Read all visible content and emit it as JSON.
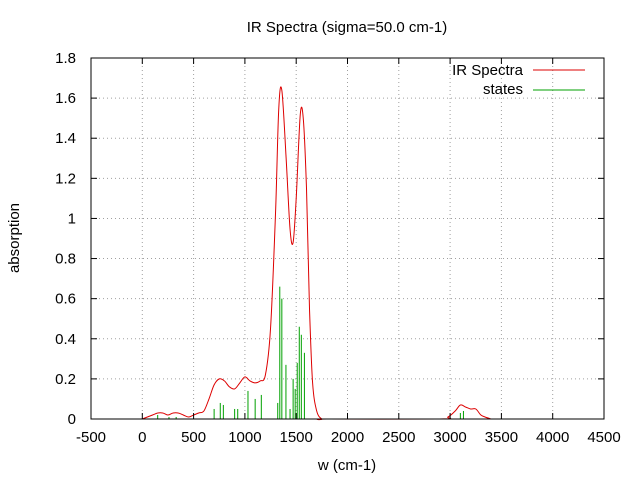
{
  "chart_data": {
    "type": "line",
    "title": "IR Spectra (sigma=50.0 cm-1)",
    "xlabel": "w (cm-1)",
    "ylabel": "absorption",
    "xlim": [
      -500,
      4500
    ],
    "ylim": [
      0,
      1.8
    ],
    "x_ticks": [
      -500,
      0,
      500,
      1000,
      1500,
      2000,
      2500,
      3000,
      3500,
      4000,
      4500
    ],
    "x_tick_labels": [
      "-500",
      "0",
      "500",
      "1000",
      "1500",
      "2000",
      "2500",
      "3000",
      "3500",
      "4000",
      "4500"
    ],
    "y_ticks": [
      0,
      0.2,
      0.4,
      0.6,
      0.8,
      1.0,
      1.2,
      1.4,
      1.6,
      1.8
    ],
    "y_tick_labels": [
      "0",
      "0.2",
      "0.4",
      "0.6",
      "0.8",
      "1",
      "1.2",
      "1.4",
      "1.6",
      "1.8"
    ],
    "grid": true,
    "legend_position": "top-right",
    "series": [
      {
        "name": "IR Spectra",
        "kind": "line",
        "color": "#dd0000",
        "x": [
          0,
          100,
          150,
          200,
          250,
          300,
          350,
          400,
          450,
          500,
          550,
          600,
          650,
          700,
          750,
          800,
          850,
          900,
          950,
          1000,
          1050,
          1100,
          1150,
          1200,
          1250,
          1300,
          1330,
          1360,
          1400,
          1440,
          1470,
          1500,
          1540,
          1570,
          1600,
          1630,
          1660,
          1700,
          1750,
          1800,
          2900,
          2980,
          3050,
          3100,
          3150,
          3200,
          3250,
          3300,
          3340,
          3400
        ],
        "y": [
          0.0,
          0.02,
          0.03,
          0.03,
          0.02,
          0.03,
          0.03,
          0.02,
          0.01,
          0.02,
          0.03,
          0.04,
          0.1,
          0.17,
          0.2,
          0.19,
          0.16,
          0.15,
          0.18,
          0.21,
          0.19,
          0.18,
          0.19,
          0.22,
          0.45,
          1.05,
          1.55,
          1.64,
          1.32,
          0.95,
          0.88,
          1.1,
          1.52,
          1.49,
          1.15,
          0.55,
          0.18,
          0.04,
          0.0,
          0.0,
          0.0,
          0.01,
          0.04,
          0.07,
          0.06,
          0.05,
          0.05,
          0.02,
          0.01,
          0.0
        ]
      },
      {
        "name": "states",
        "kind": "impulses",
        "color": "#00a000",
        "x": [
          150,
          260,
          330,
          700,
          760,
          790,
          900,
          930,
          1030,
          1100,
          1160,
          1320,
          1340,
          1360,
          1400,
          1440,
          1470,
          1490,
          1510,
          1530,
          1550,
          1580,
          3100,
          3130
        ],
        "y": [
          0.02,
          0.01,
          0.01,
          0.05,
          0.08,
          0.07,
          0.05,
          0.05,
          0.14,
          0.1,
          0.12,
          0.08,
          0.66,
          0.6,
          0.27,
          0.05,
          0.2,
          0.15,
          0.28,
          0.46,
          0.42,
          0.33,
          0.03,
          0.04
        ]
      }
    ]
  }
}
